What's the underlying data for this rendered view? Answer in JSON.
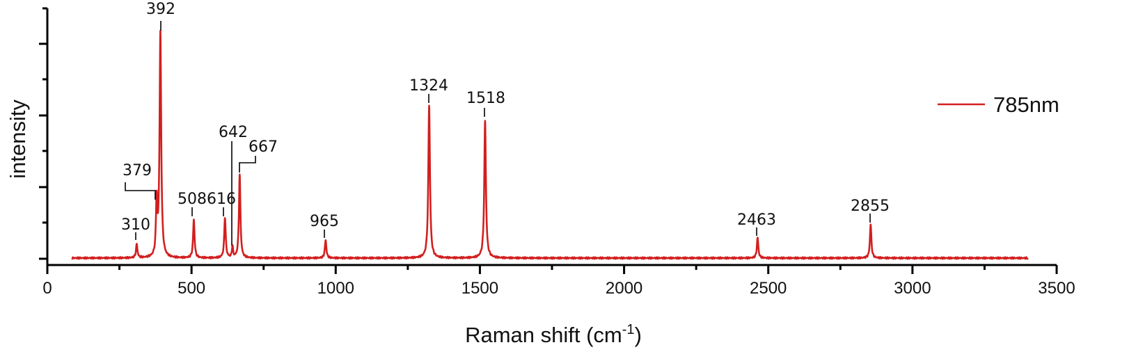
{
  "chart_data": {
    "type": "line",
    "title": "",
    "xlabel": "Raman shift (cm",
    "xlabel_superscript": "-1",
    "xlabel_suffix": ")",
    "ylabel": "intensity",
    "xlim": [
      0,
      3500
    ],
    "x_ticks": [
      0,
      500,
      1000,
      1500,
      2000,
      2500,
      3000,
      3500
    ],
    "x_tick_labels": [
      "0",
      "500",
      "1000",
      "1500",
      "2000",
      "2500",
      "3000",
      "3500"
    ],
    "ylim": [
      0,
      1
    ],
    "y_tick_labels_shown": false,
    "grid": false,
    "legend_position": "right",
    "color": "#d21f1f",
    "series": [
      {
        "name": "785nm",
        "x_range": [
          85,
          3400
        ],
        "baseline": 0.0,
        "peaks": [
          {
            "x": 310,
            "y": 0.06,
            "label": "310"
          },
          {
            "x": 379,
            "y": 0.24,
            "label": "379"
          },
          {
            "x": 392,
            "y": 1.0,
            "label": "392"
          },
          {
            "x": 508,
            "y": 0.17,
            "label": "508"
          },
          {
            "x": 616,
            "y": 0.18,
            "label": "616"
          },
          {
            "x": 642,
            "y": 0.05,
            "label": "642"
          },
          {
            "x": 667,
            "y": 0.37,
            "label": "667"
          },
          {
            "x": 965,
            "y": 0.08,
            "label": "965"
          },
          {
            "x": 1324,
            "y": 0.68,
            "label": "1324"
          },
          {
            "x": 1518,
            "y": 0.61,
            "label": "1518"
          },
          {
            "x": 2463,
            "y": 0.09,
            "label": "2463"
          },
          {
            "x": 2855,
            "y": 0.15,
            "label": "2855"
          }
        ]
      }
    ]
  }
}
